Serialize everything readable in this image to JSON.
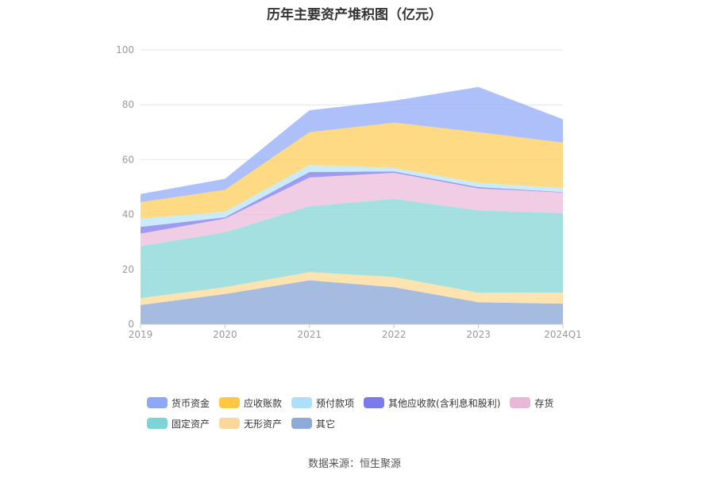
{
  "chart_data": {
    "type": "area",
    "stacked": true,
    "title": "历年主要资产堆积图（亿元）",
    "categories": [
      "2019",
      "2020",
      "2021",
      "2022",
      "2023",
      "2024Q1"
    ],
    "y_ticks": [
      "0",
      "20",
      "40",
      "60",
      "80",
      "100"
    ],
    "ylim": [
      0,
      100
    ],
    "grid": true,
    "legend_position": "bottom",
    "series": [
      {
        "name": "其它",
        "color": "#8eaad8",
        "values": [
          7,
          11,
          16,
          13.5,
          8,
          7.5
        ]
      },
      {
        "name": "无形资产",
        "color": "#fddc9c",
        "values": [
          2.5,
          2.5,
          3,
          3.7,
          3.5,
          4
        ]
      },
      {
        "name": "固定资产",
        "color": "#8fd8d8",
        "values": [
          19,
          20,
          24,
          28.5,
          30,
          29
        ]
      },
      {
        "name": "存货",
        "color": "#ecc1dd",
        "values": [
          4.5,
          5,
          10.5,
          9.5,
          8,
          7.5
        ]
      },
      {
        "name": "其他应收款(含利息和股利)",
        "color": "#8583ec",
        "values": [
          2.5,
          0.5,
          2,
          0.5,
          0.5,
          0.2
        ]
      },
      {
        "name": "预付款项",
        "color": "#bde6f7",
        "values": [
          3,
          2,
          2.5,
          1.3,
          1.5,
          1.5
        ]
      },
      {
        "name": "应收账款",
        "color": "#ffd167",
        "values": [
          6,
          8,
          12,
          16.5,
          18.5,
          16.5
        ]
      },
      {
        "name": "货币资金",
        "color": "#99b0f7",
        "values": [
          3,
          4,
          8,
          8,
          16.5,
          8.5
        ]
      }
    ]
  },
  "legend": {
    "row1": [
      {
        "label": "货币资金",
        "color": "#8ea8f7"
      },
      {
        "label": "应收账款",
        "color": "#fec844"
      },
      {
        "label": "预付款项",
        "color": "#ade0f8"
      },
      {
        "label": "其他应收款(含利息和股利)",
        "color": "#7b7bec"
      },
      {
        "label": "存货",
        "color": "#e9b8d9"
      }
    ],
    "row2": [
      {
        "label": "固定资产",
        "color": "#7dd4d6"
      },
      {
        "label": "无形资产",
        "color": "#fcd79a"
      },
      {
        "label": "其它",
        "color": "#8eaad8"
      }
    ]
  },
  "source": "数据来源：恒生聚源"
}
